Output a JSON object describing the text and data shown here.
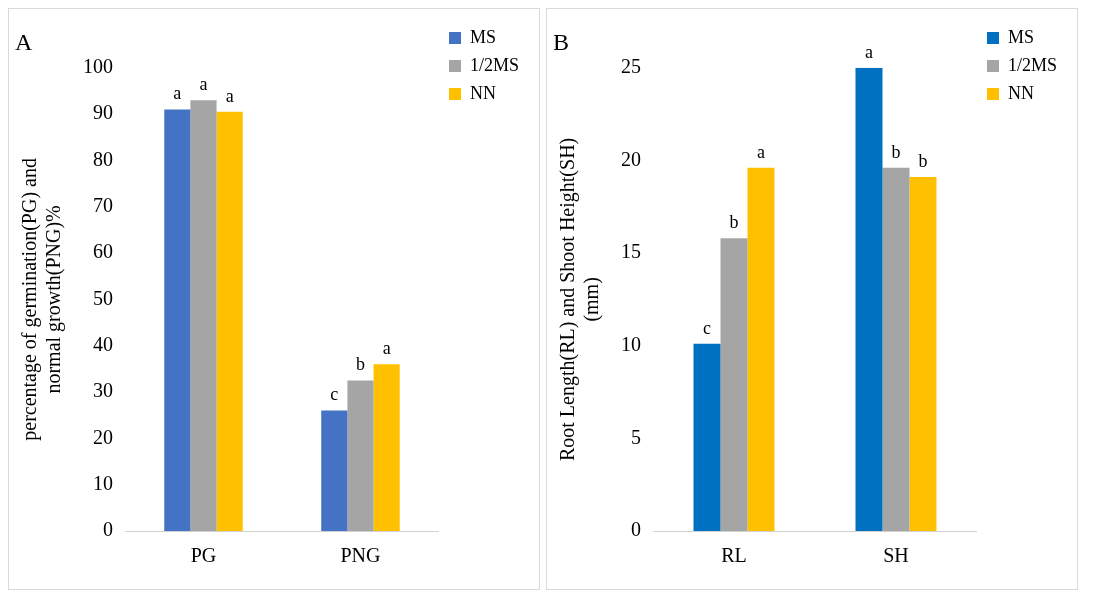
{
  "chart_data": [
    {
      "type": "bar",
      "title": "A",
      "ylabel": "percentage of germination(PG) and normal growth(PNG)%",
      "categories": [
        "PG",
        "PNG"
      ],
      "ylim": [
        0,
        100
      ],
      "yticks": [
        0,
        10,
        20,
        30,
        40,
        50,
        60,
        70,
        80,
        90,
        100
      ],
      "grid": false,
      "legend": "top right",
      "series": [
        {
          "name": "MS",
          "color": "#4472c4",
          "values": [
            91,
            26
          ],
          "value_labels": [
            "a",
            "c"
          ]
        },
        {
          "name": "1/2MS",
          "color": "#a5a5a5",
          "values": [
            93,
            32.5
          ],
          "value_labels": [
            "a",
            "b"
          ]
        },
        {
          "name": "NN",
          "color": "#ffc000",
          "values": [
            90.5,
            36
          ],
          "value_labels": [
            "a",
            "a"
          ]
        }
      ]
    },
    {
      "type": "bar",
      "title": "B",
      "ylabel": "Root Length(RL) and Shoot Height(SH) (mm)",
      "categories": [
        "RL",
        "SH"
      ],
      "ylim": [
        0,
        25
      ],
      "yticks": [
        0,
        5,
        10,
        15,
        20,
        25
      ],
      "grid": false,
      "legend": "top right",
      "series": [
        {
          "name": "MS",
          "color": "#0070c0",
          "values": [
            10.1,
            25
          ],
          "value_labels": [
            "c",
            "a"
          ]
        },
        {
          "name": "1/2MS",
          "color": "#a5a5a5",
          "values": [
            15.8,
            19.6
          ],
          "value_labels": [
            "b",
            "b"
          ]
        },
        {
          "name": "NN",
          "color": "#ffc000",
          "values": [
            19.6,
            19.1
          ],
          "value_labels": [
            "a",
            "b"
          ]
        }
      ]
    }
  ]
}
